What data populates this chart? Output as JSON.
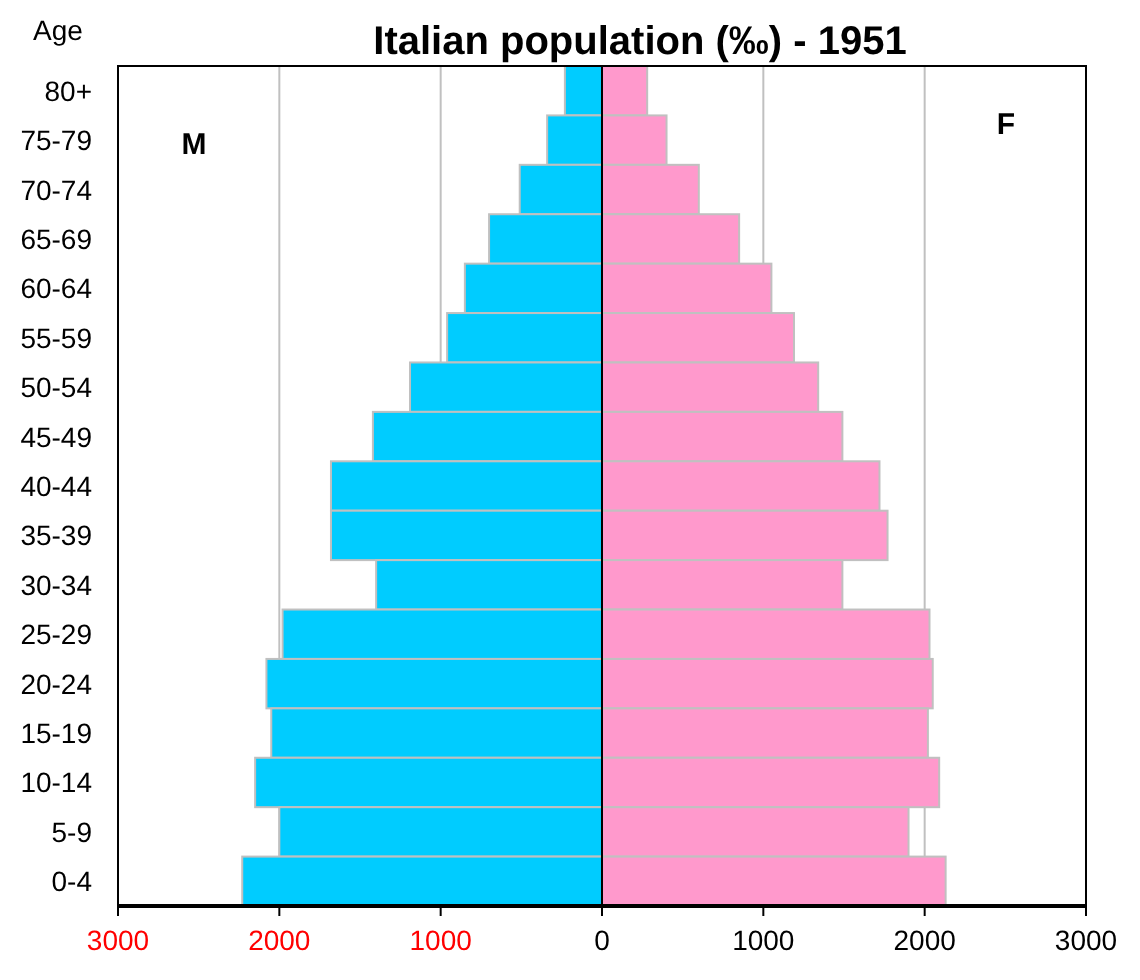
{
  "chart_data": {
    "type": "bar",
    "orientation": "horizontal",
    "stacked": true,
    "title": "Italian population (‰) - 1951",
    "ylabel": "Age",
    "categories": [
      "80+",
      "75-79",
      "70-74",
      "65-69",
      "60-64",
      "55-59",
      "50-54",
      "45-49",
      "40-44",
      "35-39",
      "30-34",
      "25-29",
      "20-24",
      "15-19",
      "10-14",
      "5-9",
      "0-4"
    ],
    "series": [
      {
        "color": "#00ccff",
        "values": [
          -230,
          -340,
          -510,
          -700,
          -850,
          -960,
          -1190,
          -1420,
          -1680,
          -1680,
          -1400,
          -1980,
          -2080,
          -2050,
          -2150,
          -2000,
          -2230
        ]
      },
      {
        "color": "#ff99cc",
        "values": [
          280,
          400,
          600,
          850,
          1050,
          1190,
          1340,
          1490,
          1720,
          1770,
          1490,
          2030,
          2050,
          2020,
          2090,
          1900,
          2130
        ]
      }
    ],
    "xlim": [
      -3000,
      3000
    ],
    "xticks": [
      {
        "value": -3000,
        "label": "3000"
      },
      {
        "value": -2000,
        "label": "2000"
      },
      {
        "value": -1000,
        "label": "1000"
      },
      0,
      1000,
      2000,
      3000
    ],
    "grid": "x",
    "annotations": [
      "M",
      "F"
    ]
  }
}
